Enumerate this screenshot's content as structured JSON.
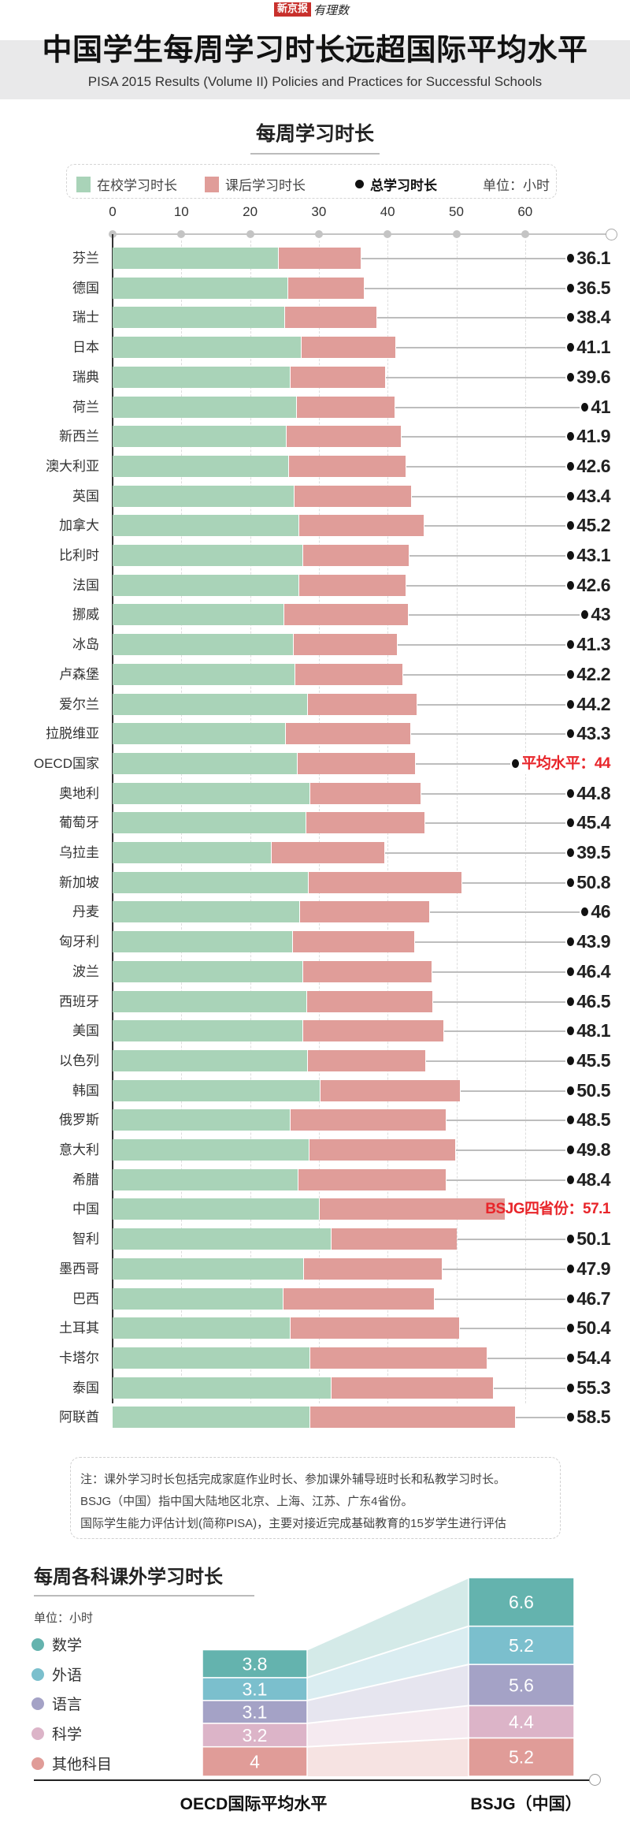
{
  "header": {
    "logo_text": "新京报",
    "logo_sub": "有理数",
    "title": "中国学生每周学习时长远超国际平均水平",
    "subtitle": "PISA 2015 Results (Volume II) Policies and Practices for Successful Schools"
  },
  "section1": {
    "title": "每周学习时长",
    "legend": {
      "school": "在校学习时长",
      "after": "课后学习时长",
      "total": "总学习时长",
      "unit": "单位：小时"
    }
  },
  "colors": {
    "school": "#a9d3b8",
    "after": "#e09d99",
    "highlight": "#e8252a"
  },
  "note": {
    "lines": [
      "注：课外学习时长包括完成家庭作业时长、参加课外辅导班时长和私教学习时长。",
      "BSJG（中国）指中国大陆地区北京、上海、江苏、广东4省份。",
      "国际学生能力评估计划(简称PISA)，主要对接近完成基础教育的15岁学生进行评估"
    ]
  },
  "section2": {
    "title": "每周各科课外学习时长",
    "unit": "单位：小时"
  },
  "chart_data": [
    {
      "type": "bar",
      "stacked": true,
      "orientation": "horizontal",
      "title": "每周学习时长",
      "xlabel": "",
      "ylabel": "",
      "unit": "小时",
      "xlim": [
        0,
        60
      ],
      "xticks": [
        "0",
        "10",
        "20",
        "30",
        "40",
        "50",
        "60"
      ],
      "grid": true,
      "legend_position": "top",
      "categories": [
        "芬兰",
        "德国",
        "瑞士",
        "日本",
        "瑞典",
        "荷兰",
        "新西兰",
        "澳大利亚",
        "英国",
        "加拿大",
        "比利时",
        "法国",
        "挪威",
        "冰岛",
        "卢森堡",
        "爱尔兰",
        "拉脱维亚",
        "OECD国家",
        "奥地利",
        "葡萄牙",
        "乌拉圭",
        "新加坡",
        "丹麦",
        "匈牙利",
        "波兰",
        "西班牙",
        "美国",
        "以色列",
        "韩国",
        "俄罗斯",
        "意大利",
        "希腊",
        "中国",
        "智利",
        "墨西哥",
        "巴西",
        "土耳其",
        "卡塔尔",
        "泰国",
        "阿联酋"
      ],
      "series": [
        {
          "name": "在校学习时长",
          "values": [
            24.2,
            25.5,
            25.1,
            27.5,
            25.9,
            26.8,
            25.3,
            25.7,
            26.5,
            27.1,
            27.7,
            27.2,
            25.0,
            26.3,
            26.6,
            28.4,
            25.2,
            26.9,
            28.8,
            28.2,
            23.1,
            28.5,
            27.3,
            26.2,
            27.7,
            28.3,
            27.7,
            28.4,
            30.2,
            25.9,
            28.6,
            27.0,
            30.1,
            31.9,
            27.8,
            24.9,
            25.9,
            28.7,
            31.8,
            28.8
          ]
        },
        {
          "name": "课后学习时长",
          "derived": "total minus school"
        }
      ],
      "totals": [
        36.1,
        36.5,
        38.4,
        41.1,
        39.6,
        41,
        41.9,
        42.6,
        43.4,
        45.2,
        43.1,
        42.6,
        43,
        41.3,
        42.2,
        44.2,
        43.3,
        44,
        44.8,
        45.4,
        39.5,
        50.8,
        46,
        43.9,
        46.4,
        46.5,
        48.1,
        45.5,
        50.5,
        48.5,
        49.8,
        48.4,
        57.1,
        50.1,
        47.9,
        46.7,
        50.4,
        54.4,
        55.3,
        58.5
      ],
      "annotations": {
        "OECD国家": "平均水平：44",
        "中国": "BSJG四省份：57.1"
      }
    },
    {
      "type": "bar",
      "stacked": true,
      "title": "每周各科课外学习时长",
      "unit": "小时",
      "categories": [
        "OECD国际平均水平",
        "BSJG（中国）"
      ],
      "series": [
        {
          "name": "数学",
          "color": "#64b3ae",
          "values": [
            3.8,
            6.6
          ]
        },
        {
          "name": "外语",
          "color": "#7bbfcd",
          "values": [
            3.1,
            5.2
          ]
        },
        {
          "name": "语言",
          "color": "#a4a2c6",
          "values": [
            3.1,
            5.6
          ]
        },
        {
          "name": "科学",
          "color": "#dcb4c8",
          "values": [
            3.2,
            4.4
          ]
        },
        {
          "name": "其他科目",
          "color": "#e09c98",
          "values": [
            4,
            5.2
          ]
        }
      ],
      "legend_position": "left"
    }
  ]
}
